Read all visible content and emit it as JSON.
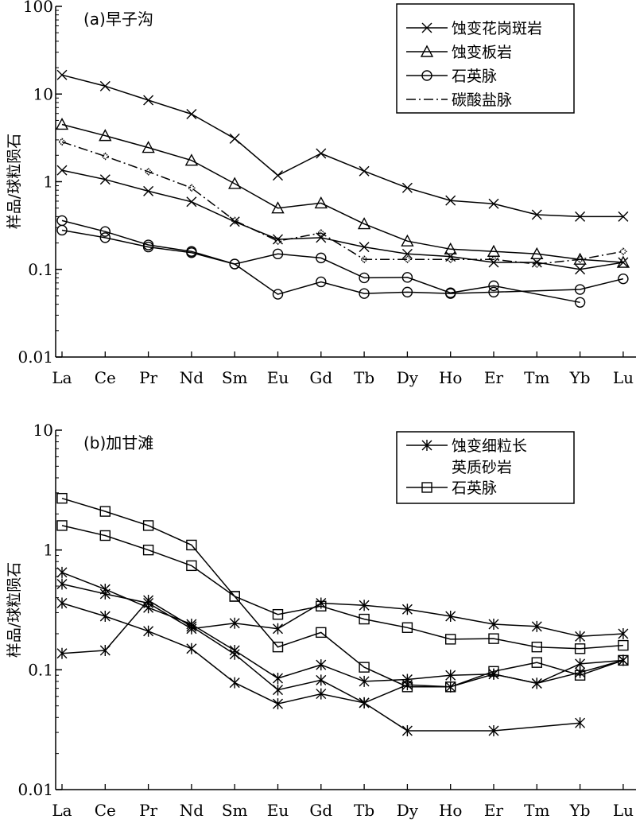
{
  "chart_data": [
    {
      "type": "line",
      "title": "(a)早子沟",
      "ylabel": "样品/球粒陨石",
      "yscale": "log",
      "ylim": [
        0.01,
        100
      ],
      "y_tick_labels": [
        "0.01",
        "0.1",
        "1",
        "10",
        "100"
      ],
      "categories": [
        "La",
        "Ce",
        "Pr",
        "Nd",
        "Sm",
        "Eu",
        "Gd",
        "Tb",
        "Dy",
        "Ho",
        "Er",
        "Tm",
        "Yb",
        "Lu"
      ],
      "legend_position": "top-right",
      "legend": [
        "蚀变花岗斑岩",
        "蚀变板岩",
        "石英脉",
        "碳酸盐脉"
      ],
      "series": [
        {
          "name": "蚀变花岗斑岩",
          "marker": "x",
          "style": "solid",
          "values": [
            16.5,
            12.3,
            8.5,
            5.9,
            3.1,
            1.18,
            2.1,
            1.32,
            0.85,
            0.61,
            0.56,
            0.42,
            0.4,
            0.4
          ]
        },
        {
          "name": "蚀变花岗斑岩",
          "marker": "x",
          "style": "solid",
          "values": [
            1.35,
            1.06,
            0.78,
            0.59,
            0.35,
            0.22,
            0.23,
            0.18,
            0.15,
            0.14,
            0.12,
            0.12,
            0.1,
            0.12
          ]
        },
        {
          "name": "蚀变板岩",
          "marker": "triangle",
          "style": "solid",
          "values": [
            4.5,
            3.35,
            2.45,
            1.75,
            0.95,
            0.5,
            0.57,
            0.33,
            0.21,
            0.17,
            0.16,
            0.15,
            0.13,
            0.12
          ]
        },
        {
          "name": "石英脉",
          "marker": "circle",
          "style": "solid",
          "values": [
            0.36,
            0.27,
            0.19,
            0.16,
            0.115,
            0.15,
            0.135,
            0.08,
            0.081,
            0.054,
            0.065,
            null,
            0.042,
            null
          ]
        },
        {
          "name": "石英脉",
          "marker": "circle",
          "style": "solid",
          "values": [
            0.28,
            0.23,
            0.18,
            0.155,
            0.115,
            0.052,
            0.072,
            0.053,
            0.055,
            0.053,
            0.055,
            null,
            0.059,
            0.078
          ]
        },
        {
          "name": "碳酸盐脉",
          "marker": "diamond",
          "style": "dashdot",
          "values": [
            2.85,
            1.95,
            1.3,
            0.85,
            0.36,
            0.21,
            0.26,
            0.13,
            0.13,
            0.13,
            0.13,
            0.115,
            0.13,
            0.16
          ]
        }
      ]
    },
    {
      "type": "line",
      "title": "(b)加甘滩",
      "ylabel": "样品/球粒陨石",
      "yscale": "log",
      "ylim": [
        0.01,
        10
      ],
      "y_tick_labels": [
        "0.01",
        "0.1",
        "1",
        "10"
      ],
      "categories": [
        "La",
        "Ce",
        "Pr",
        "Nd",
        "Sm",
        "Eu",
        "Gd",
        "Tb",
        "Dy",
        "Ho",
        "Er",
        "Tm",
        "Yb",
        "Lu"
      ],
      "legend_position": "top-right",
      "legend": [
        "蚀变细粒长英质砂岩",
        "石英脉"
      ],
      "series": [
        {
          "name": "蚀变细粒长英质砂岩",
          "marker": "star",
          "style": "solid",
          "values": [
            0.65,
            0.47,
            0.33,
            0.24,
            0.145,
            0.085,
            0.11,
            0.08,
            0.083,
            0.09,
            0.092,
            0.077,
            0.112,
            0.12
          ]
        },
        {
          "name": "蚀变细粒长英质砂岩",
          "marker": "star",
          "style": "solid",
          "values": [
            0.52,
            0.43,
            0.36,
            0.22,
            0.245,
            0.22,
            0.36,
            0.345,
            0.32,
            0.28,
            0.24,
            0.23,
            0.19,
            0.2
          ]
        },
        {
          "name": "蚀变细粒长英质砂岩",
          "marker": "star",
          "style": "solid",
          "values": [
            0.36,
            0.28,
            0.21,
            0.15,
            0.078,
            0.052,
            0.063,
            0.053,
            0.031,
            null,
            0.031,
            null,
            0.036,
            null
          ]
        },
        {
          "name": "蚀变细粒长英质砂岩",
          "marker": "star",
          "style": "solid",
          "values": [
            0.137,
            0.145,
            0.38,
            0.23,
            0.135,
            0.068,
            0.082,
            0.053,
            0.075,
            0.072,
            0.092,
            0.077,
            0.095,
            0.12
          ]
        },
        {
          "name": "石英脉",
          "marker": "square",
          "style": "solid",
          "values": [
            2.7,
            2.1,
            1.6,
            1.1,
            0.41,
            0.155,
            0.205,
            0.105,
            0.072,
            0.072,
            0.097,
            0.115,
            0.09,
            0.12
          ]
        },
        {
          "name": "石英脉",
          "marker": "square",
          "style": "solid",
          "values": [
            1.6,
            1.32,
            1.0,
            0.74,
            0.41,
            0.29,
            0.34,
            0.265,
            0.225,
            0.18,
            0.182,
            0.155,
            0.15,
            0.16
          ]
        }
      ]
    }
  ]
}
